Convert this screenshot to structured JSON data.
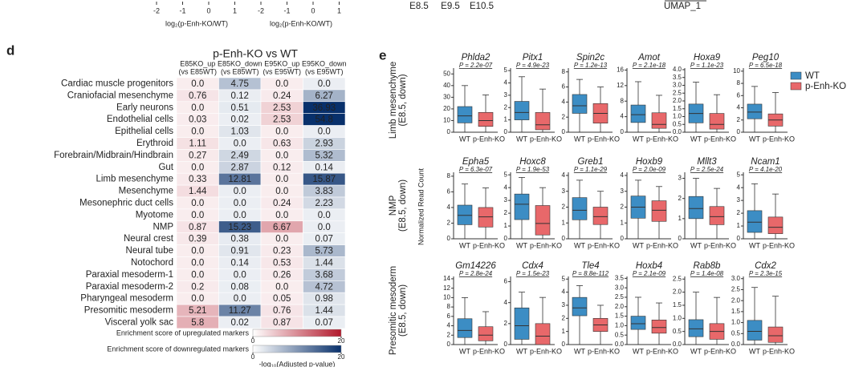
{
  "top": {
    "axis1_ticks": [
      -2,
      -1,
      0,
      1
    ],
    "axis1_label": "log₂(p-Enh-KO/WT)",
    "axis2_ticks": [
      -2,
      -1,
      0,
      1
    ],
    "axis2_label": "log₂(p-Enh-KO/WT)",
    "stages": [
      "E8.5",
      "E9.5",
      "E10.5"
    ],
    "umap_label": "UMAP_1"
  },
  "d": {
    "letter": "d",
    "title": "p-Enh-KO vs WT",
    "columns": [
      {
        "name": "E85KO_up",
        "sub": "(vs E85WT)",
        "color": "#b2182b"
      },
      {
        "name": "E85KO_down",
        "sub": "(vs E85WT)",
        "color": "#08306b"
      },
      {
        "name": "E95KO_up",
        "sub": "(vs E95WT)",
        "color": "#b2182b"
      },
      {
        "name": "E95KO_down",
        "sub": "(vs E95WT)",
        "color": "#08306b"
      }
    ],
    "rows": [
      "Cardiac muscle progenitors",
      "Craniofacial mesenchyme",
      "Early neurons",
      "Endothelial cells",
      "Epithelial cells",
      "Erythroid",
      "Forebrain/Midbrain/Hindbrain",
      "Gut",
      "Limb mesenchyme",
      "Mesenchyme",
      "Mesonephric duct cells",
      "Myotome",
      "NMP",
      "Neural crest",
      "Neural tube",
      "Notochord",
      "Paraxial mesoderm-1",
      "Paraxial mesoderm-2",
      "Pharyngeal mesoderm",
      "Presomitic mesoderm",
      "Visceral yolk sac"
    ],
    "values": [
      [
        0.0,
        4.75,
        0.0,
        0.0
      ],
      [
        0.76,
        0.12,
        0.24,
        6.27
      ],
      [
        0.0,
        0.51,
        2.53,
        36.93
      ],
      [
        0.03,
        0.02,
        2.53,
        54.8
      ],
      [
        0.0,
        1.03,
        0.0,
        0.0
      ],
      [
        1.11,
        0.0,
        0.63,
        2.93
      ],
      [
        0.27,
        2.49,
        0.0,
        5.32
      ],
      [
        0.0,
        2.87,
        0.12,
        0.14
      ],
      [
        0.33,
        12.81,
        0.0,
        15.87
      ],
      [
        1.44,
        0.0,
        0.0,
        3.83
      ],
      [
        0.0,
        0.0,
        0.24,
        2.23
      ],
      [
        0.0,
        0.0,
        0.0,
        0.0
      ],
      [
        0.87,
        15.23,
        6.67,
        0.0
      ],
      [
        0.39,
        0.38,
        0.0,
        0.07
      ],
      [
        0.0,
        0.91,
        0.23,
        5.73
      ],
      [
        0.0,
        0.14,
        0.53,
        1.44
      ],
      [
        0.0,
        0.0,
        0.26,
        3.68
      ],
      [
        0.2,
        0.08,
        0.0,
        4.72
      ],
      [
        0.0,
        0.0,
        0.05,
        0.98
      ],
      [
        5.21,
        11.27,
        0.76,
        1.44
      ],
      [
        5.8,
        0.02,
        0.87,
        0.07
      ]
    ],
    "value_labels": [
      [
        "0.0",
        "4.75",
        "0.0",
        "0.0"
      ],
      [
        "0.76",
        "0.12",
        "0.24",
        "6.27"
      ],
      [
        "0.0",
        "0.51",
        "2.53",
        "36.93"
      ],
      [
        "0.03",
        "0.02",
        "2.53",
        "54.8"
      ],
      [
        "0.0",
        "1.03",
        "0.0",
        "0.0"
      ],
      [
        "1.11",
        "0.0",
        "0.63",
        "2.93"
      ],
      [
        "0.27",
        "2.49",
        "0.0",
        "5.32"
      ],
      [
        "0.0",
        "2.87",
        "0.12",
        "0.14"
      ],
      [
        "0.33",
        "12.81",
        "0.0",
        "15.87"
      ],
      [
        "1.44",
        "0.0",
        "0.0",
        "3.83"
      ],
      [
        "0.0",
        "0.0",
        "0.24",
        "2.23"
      ],
      [
        "0.0",
        "0.0",
        "0.0",
        "0.0"
      ],
      [
        "0.87",
        "15.23",
        "6.67",
        "0.0"
      ],
      [
        "0.39",
        "0.38",
        "0.0",
        "0.07"
      ],
      [
        "0.0",
        "0.91",
        "0.23",
        "5.73"
      ],
      [
        "0.0",
        "0.14",
        "0.53",
        "1.44"
      ],
      [
        "0.0",
        "0.0",
        "0.26",
        "3.68"
      ],
      [
        "0.2",
        "0.08",
        "0.0",
        "4.72"
      ],
      [
        "0.0",
        "0.0",
        "0.05",
        "0.98"
      ],
      [
        "5.21",
        "11.27",
        "0.76",
        "1.44"
      ],
      [
        "5.8",
        "0.02",
        "0.87",
        "0.07"
      ]
    ],
    "legend": [
      {
        "label": "Enrichment score of upregulated markers",
        "color": "#b2182b",
        "ticks": [
          0,
          20
        ]
      },
      {
        "label": "Enrichment score of downregulated markers",
        "color": "#08306b",
        "ticks": [
          0,
          20
        ]
      }
    ],
    "scale_label": "-log₁₀(Adjusted p-value)"
  },
  "e": {
    "letter": "e",
    "ylabel": "Normalized Read Count",
    "categories": [
      "WT",
      "p-Enh-KO"
    ],
    "colors": [
      "#3c8dc4",
      "#e8686a"
    ],
    "row_labels": [
      [
        "Limb mesenchyme",
        "(E8.5, down)"
      ],
      [
        "NMP",
        "(E8.5, down)"
      ],
      [
        "Presomitic mesoderm",
        "(E8.5, down)"
      ]
    ],
    "plots": [
      {
        "gene": "Phlda2",
        "p": "P = 2.2e-07",
        "ylim": [
          0,
          55
        ],
        "yticks": [
          0,
          10,
          20,
          30,
          40,
          50
        ],
        "stats": [
          [
            0,
            8,
            14,
            22,
            40
          ],
          [
            0,
            5,
            10,
            17,
            32
          ]
        ]
      },
      {
        "gene": "Pitx1",
        "p": "P = 4.9e-23",
        "ylim": [
          0,
          5.2
        ],
        "yticks": [
          0,
          1,
          2,
          3,
          4,
          5
        ],
        "stats": [
          [
            0,
            1,
            1.6,
            2.5,
            4.5
          ],
          [
            0,
            0.2,
            0.6,
            1.6,
            3.5
          ]
        ]
      },
      {
        "gene": "Spin2c",
        "p": "P = 1.2e-13",
        "ylim": [
          0,
          8.5
        ],
        "yticks": [
          0,
          2,
          4,
          6,
          8
        ],
        "stats": [
          [
            0,
            2.5,
            3.5,
            5,
            7
          ],
          [
            0,
            1.2,
            2.5,
            3.8,
            6
          ]
        ]
      },
      {
        "gene": "Amot",
        "p": "P = 2.1e-18",
        "ylim": [
          0,
          16.5
        ],
        "yticks": [
          0,
          4,
          8,
          12,
          16
        ],
        "stats": [
          [
            0,
            2.5,
            4.5,
            7,
            13
          ],
          [
            0,
            1,
            2,
            5,
            9.5
          ]
        ]
      },
      {
        "gene": "Hoxa9",
        "p": "P = 1.1e-23",
        "ylim": [
          0,
          4.1
        ],
        "yticks": [
          {
            "value": 0,
            "label": "0.0"
          },
          0.5,
          {
            "value": 1,
            "label": "1.0"
          },
          1.5,
          {
            "value": 2,
            "label": "2.0"
          },
          2.5,
          {
            "value": 3,
            "label": "3.0"
          },
          3.5,
          {
            "value": 4,
            "label": "4.0"
          }
        ],
        "stats": [
          [
            0,
            0.6,
            1.2,
            1.8,
            3.2
          ],
          [
            0,
            0.2,
            0.5,
            1.2,
            2.4
          ]
        ]
      },
      {
        "gene": "Peg10",
        "p": "P = 6.5e-18",
        "ylim": [
          0,
          10.5
        ],
        "yticks": [
          0,
          2,
          4,
          6,
          8,
          10
        ],
        "stats": [
          [
            0,
            2.2,
            3.3,
            4.6,
            7.5
          ],
          [
            0,
            1,
            2,
            3,
            6.5
          ]
        ]
      },
      {
        "gene": "Epha5",
        "p": "P = 6.3e-07",
        "ylim": [
          0,
          8.5
        ],
        "yticks": [
          0,
          2,
          4,
          6,
          8
        ],
        "stats": [
          [
            0,
            1.8,
            3,
            4.3,
            7
          ],
          [
            0,
            1.5,
            2.8,
            4,
            6.5
          ]
        ]
      },
      {
        "gene": "Hoxc8",
        "p": "P = 1.9e-53",
        "ylim": [
          0,
          5.2
        ],
        "yticks": [
          0,
          1,
          2,
          3,
          4,
          5
        ],
        "stats": [
          [
            0,
            1.5,
            2.7,
            3.5,
            4.8
          ],
          [
            0,
            0.3,
            1.2,
            2.6,
            4
          ]
        ]
      },
      {
        "gene": "Greb1",
        "p": "P = 1.1e-29",
        "ylim": [
          0,
          4.2
        ],
        "yticks": [
          0,
          1,
          2,
          3,
          4
        ],
        "stats": [
          [
            0,
            1.2,
            1.8,
            2.6,
            3.7
          ],
          [
            0,
            0.9,
            1.4,
            2,
            3
          ]
        ]
      },
      {
        "gene": "Hoxb9",
        "p": "P = 2.0e-09",
        "ylim": [
          0,
          4.2
        ],
        "yticks": [
          0,
          1,
          2,
          3,
          4
        ],
        "stats": [
          [
            0,
            1.3,
            2,
            2.7,
            3.7
          ],
          [
            0,
            1.1,
            1.8,
            2.4,
            3.3
          ]
        ]
      },
      {
        "gene": "Mllt3",
        "p": "P = 2.5e-24",
        "ylim": [
          0,
          3.3
        ],
        "yticks": [
          0,
          1,
          2,
          3
        ],
        "stats": [
          [
            0,
            1,
            1.5,
            2.1,
            3
          ],
          [
            0,
            0.7,
            1.1,
            1.6,
            2.5
          ]
        ]
      },
      {
        "gene": "Ncam1",
        "p": "P = 4.1e-20",
        "ylim": [
          0,
          5.2
        ],
        "yticks": [
          0,
          1,
          2,
          3,
          4,
          5
        ],
        "stats": [
          [
            0,
            0.5,
            1.3,
            2.2,
            4.3
          ],
          [
            0,
            0.4,
            0.9,
            1.7,
            3.5
          ]
        ]
      },
      {
        "gene": "Gm14226",
        "p": "P = 2.8e-24",
        "ylim": [
          0,
          14.5
        ],
        "yticks": [
          0,
          2,
          4,
          6,
          8,
          10,
          12,
          14
        ],
        "stats": [
          [
            0,
            1.5,
            3,
            5.5,
            10
          ],
          [
            0,
            0.8,
            2,
            3.8,
            7
          ]
        ]
      },
      {
        "gene": "Cdx4",
        "p": "P = 1.5e-23",
        "ylim": [
          0,
          6.5
        ],
        "yticks": [
          0,
          2,
          4,
          6
        ],
        "stats": [
          [
            0,
            0.5,
            1.8,
            3.5,
            5
          ],
          [
            0,
            0,
            0.8,
            2,
            4.5
          ]
        ]
      },
      {
        "gene": "Tle4",
        "p": "P = 8.8e-112",
        "ylim": [
          0,
          5.2
        ],
        "yticks": [
          0,
          1,
          2,
          3,
          4,
          5
        ],
        "stats": [
          [
            0,
            2.2,
            2.8,
            3.6,
            4.5
          ],
          [
            0,
            1,
            1.5,
            2,
            3
          ]
        ]
      },
      {
        "gene": "Hoxb4",
        "p": "P = 2.1e-09",
        "ylim": [
          0,
          3.6
        ],
        "yticks": [
          {
            "value": 0,
            "label": "0.0"
          },
          0.5,
          {
            "value": 1,
            "label": "1.0"
          },
          1.5,
          {
            "value": 2,
            "label": "2.0"
          },
          2.5,
          {
            "value": 3,
            "label": "3.0"
          },
          3.5
        ],
        "stats": [
          [
            0,
            0.8,
            1.1,
            1.5,
            2.5
          ],
          [
            0,
            0.6,
            0.9,
            1.3,
            2.2
          ]
        ]
      },
      {
        "gene": "Rab8b",
        "p": "P = 1.4e-08",
        "ylim": [
          0,
          2.6
        ],
        "yticks": [
          {
            "value": 0,
            "label": "0.0"
          },
          0.5,
          {
            "value": 1,
            "label": "1.0"
          },
          1.5,
          {
            "value": 2,
            "label": "2.0"
          },
          2.5
        ],
        "stats": [
          [
            0,
            0.3,
            0.6,
            0.95,
            2
          ],
          [
            0,
            0.2,
            0.5,
            0.8,
            1.8
          ]
        ]
      },
      {
        "gene": "Cdx2",
        "p": "P = 2.3e-15",
        "ylim": [
          0,
          3.1
        ],
        "yticks": [
          {
            "value": 0,
            "label": "0.0"
          },
          0.5,
          {
            "value": 1,
            "label": "1.0"
          },
          1.5,
          {
            "value": 2,
            "label": "2.0"
          },
          2.5,
          {
            "value": 3,
            "label": "3.0"
          }
        ],
        "stats": [
          [
            0,
            0.2,
            0.6,
            1.1,
            2.6
          ],
          [
            0,
            0.1,
            0.4,
            0.8,
            2.2
          ]
        ]
      }
    ]
  }
}
